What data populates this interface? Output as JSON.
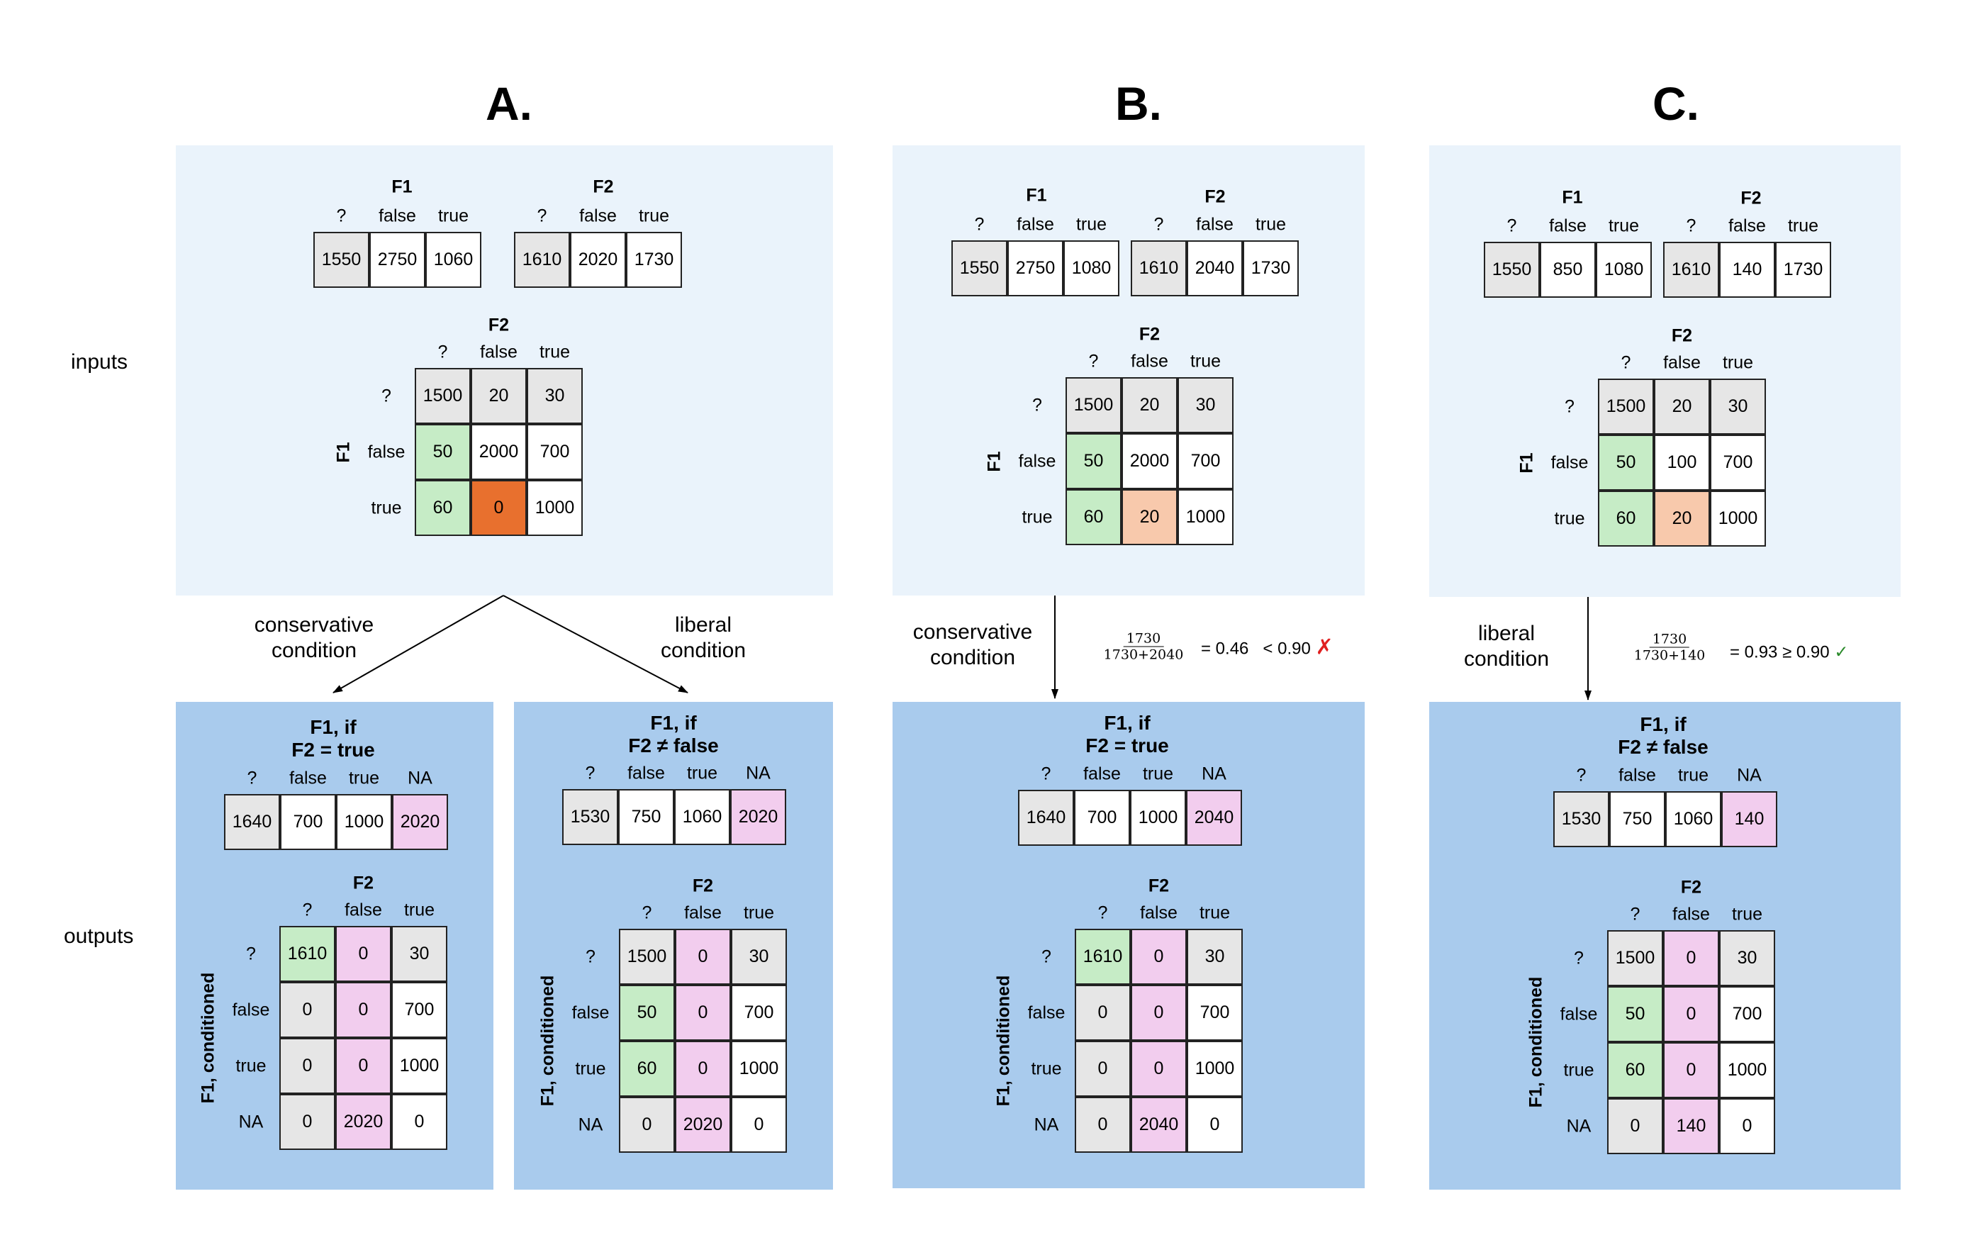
{
  "panel_titles": [
    "A.",
    "B.",
    "C."
  ],
  "row_labels": {
    "inputs": "inputs",
    "outputs": "outputs"
  },
  "headers": {
    "q": "?",
    "false": "false",
    "true": "true",
    "na": "NA"
  },
  "var_labels": {
    "f1": "F1",
    "f2": "F2",
    "f1_conditioned": "F1, conditioned"
  },
  "colors": {
    "input_bg": "#eaf3fb",
    "output_bg": "#a9cbed",
    "unknown": "#e6e6e6",
    "agree": "#c6ecc6",
    "conflict_zero": "#e8702e",
    "conflict": "#f8c9ac",
    "removed": "#f2cdee"
  },
  "conditions": {
    "conservative": [
      "conservative",
      "condition"
    ],
    "liberal": [
      "liberal",
      "condition"
    ]
  },
  "output_titles": {
    "cons": [
      "F1, if",
      "F2 = true"
    ],
    "lib": [
      "F1, if",
      "F2 ≠ false"
    ]
  },
  "panelA": {
    "f1": [
      "1550",
      "2750",
      "1060"
    ],
    "f2": [
      "1610",
      "2020",
      "1730"
    ],
    "cross": [
      [
        "1500",
        "20",
        "30"
      ],
      [
        "50",
        "2000",
        "700"
      ],
      [
        "60",
        "0",
        "1000"
      ]
    ],
    "out_cons": {
      "f1": [
        "1640",
        "700",
        "1000",
        "2020"
      ],
      "cross": [
        [
          "1610",
          "0",
          "30"
        ],
        [
          "0",
          "0",
          "700"
        ],
        [
          "0",
          "0",
          "1000"
        ],
        [
          "0",
          "2020",
          "0"
        ]
      ]
    },
    "out_lib": {
      "f1": [
        "1530",
        "750",
        "1060",
        "2020"
      ],
      "cross": [
        [
          "1500",
          "0",
          "30"
        ],
        [
          "50",
          "0",
          "700"
        ],
        [
          "60",
          "0",
          "1000"
        ],
        [
          "0",
          "2020",
          "0"
        ]
      ]
    }
  },
  "panelB": {
    "f1": [
      "1550",
      "2750",
      "1080"
    ],
    "f2": [
      "1610",
      "2040",
      "1730"
    ],
    "cross": [
      [
        "1500",
        "20",
        "30"
      ],
      [
        "50",
        "2000",
        "700"
      ],
      [
        "60",
        "20",
        "1000"
      ]
    ],
    "ratio": {
      "num": "1730",
      "den": "1730+2040",
      "eq": "= 0.46",
      "cmp": "< 0.90",
      "mark": "✗"
    },
    "out": {
      "f1": [
        "1640",
        "700",
        "1000",
        "2040"
      ],
      "cross": [
        [
          "1610",
          "0",
          "30"
        ],
        [
          "0",
          "0",
          "700"
        ],
        [
          "0",
          "0",
          "1000"
        ],
        [
          "0",
          "2040",
          "0"
        ]
      ]
    }
  },
  "panelC": {
    "f1": [
      "1550",
      "850",
      "1080"
    ],
    "f2": [
      "1610",
      "140",
      "1730"
    ],
    "cross": [
      [
        "1500",
        "20",
        "30"
      ],
      [
        "50",
        "100",
        "700"
      ],
      [
        "60",
        "20",
        "1000"
      ]
    ],
    "ratio": {
      "num": "1730",
      "den": "1730+140",
      "eq": "= 0.93",
      "cmp": "≥ 0.90",
      "mark": "✓"
    },
    "out": {
      "f1": [
        "1530",
        "750",
        "1060",
        "140"
      ],
      "cross": [
        [
          "1500",
          "0",
          "30"
        ],
        [
          "50",
          "0",
          "700"
        ],
        [
          "60",
          "0",
          "1000"
        ],
        [
          "0",
          "140",
          "0"
        ]
      ]
    }
  }
}
